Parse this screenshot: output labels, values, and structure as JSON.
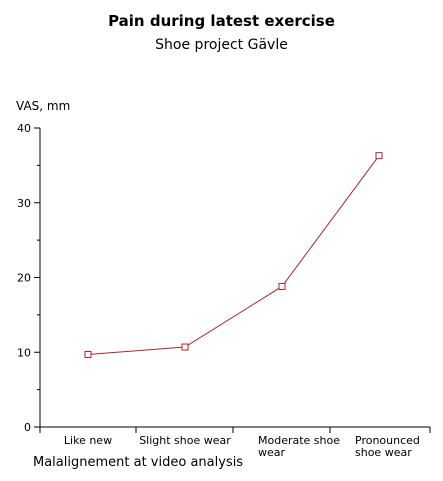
{
  "chart_data": {
    "type": "line",
    "title": "Pain during latest exercise",
    "subtitle": "Shoe project Gävle",
    "ylabel": "VAS, mm",
    "xlabel": "Malalignement at video analysis",
    "categories": [
      "Like new",
      "Slight shoe wear",
      "Moderate shoe wear",
      "Pronounced shoe wear"
    ],
    "category_lines": [
      [
        "Like new"
      ],
      [
        "Slight shoe wear"
      ],
      [
        "Moderate shoe",
        "wear"
      ],
      [
        "Pronounced",
        "shoe wear"
      ]
    ],
    "series": [
      {
        "values": [
          9.7,
          10.7,
          18.8,
          36.3
        ],
        "color": "#a52a2a",
        "marker": "open-square"
      }
    ],
    "ylim": [
      0,
      40
    ],
    "yticks": [
      0,
      10,
      20,
      30,
      40
    ],
    "grid": false,
    "legend": "none"
  }
}
